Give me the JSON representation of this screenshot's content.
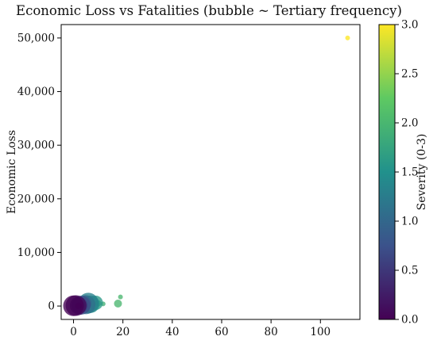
{
  "chart_data": {
    "type": "scatter",
    "title": "Economic Loss vs Fatalities (bubble ~ Tertiary frequency)",
    "xlabel": "",
    "ylabel": "Economic Loss",
    "xlim": [
      -5,
      116
    ],
    "ylim": [
      -2500,
      52500
    ],
    "x_ticks": [
      0,
      20,
      40,
      60,
      80,
      100
    ],
    "x_tick_labels": [
      "0",
      "20",
      "40",
      "60",
      "80",
      "100"
    ],
    "y_ticks": [
      0,
      10000,
      20000,
      30000,
      40000,
      50000
    ],
    "y_tick_labels": [
      "0",
      "10,000",
      "20,000",
      "30,000",
      "40,000",
      "50,000"
    ],
    "grid": false,
    "colorbar": {
      "label": "Severity (0-3)",
      "range": [
        0,
        3
      ],
      "ticks": [
        0,
        0.5,
        1,
        1.5,
        2,
        2.5,
        3
      ],
      "tick_labels": [
        "0.0",
        "0.5",
        "1.0",
        "1.5",
        "2.0",
        "2.5",
        "3.0"
      ],
      "colormap": "viridis",
      "stops": [
        "#440154",
        "#3b528b",
        "#21918c",
        "#5ec962",
        "#fde725"
      ]
    },
    "points": [
      {
        "x": 111,
        "y": 50000,
        "severity": 3.0,
        "size": 3
      },
      {
        "x": 19,
        "y": 1700,
        "severity": 2.0,
        "size": 3
      },
      {
        "x": 18,
        "y": 450,
        "severity": 2.0,
        "size": 5
      },
      {
        "x": 12,
        "y": 400,
        "severity": 1.9,
        "size": 3
      },
      {
        "x": 10,
        "y": 500,
        "severity": 1.8,
        "size": 4
      },
      {
        "x": 9,
        "y": 600,
        "severity": 1.6,
        "size": 9
      },
      {
        "x": 7,
        "y": 350,
        "severity": 1.5,
        "size": 11
      },
      {
        "x": 6,
        "y": 550,
        "severity": 1.3,
        "size": 13
      },
      {
        "x": 5,
        "y": 250,
        "severity": 1.1,
        "size": 12
      },
      {
        "x": 4,
        "y": 450,
        "severity": 0.9,
        "size": 10
      },
      {
        "x": 3,
        "y": 150,
        "severity": 0.7,
        "size": 12
      },
      {
        "x": 2,
        "y": 100,
        "severity": 0.4,
        "size": 11
      },
      {
        "x": 1,
        "y": 80,
        "severity": 0.1,
        "size": 13
      },
      {
        "x": 0,
        "y": 50,
        "severity": 0.0,
        "size": 13
      },
      {
        "x": 2,
        "y": 30,
        "severity": 0.0,
        "size": 4
      }
    ]
  }
}
